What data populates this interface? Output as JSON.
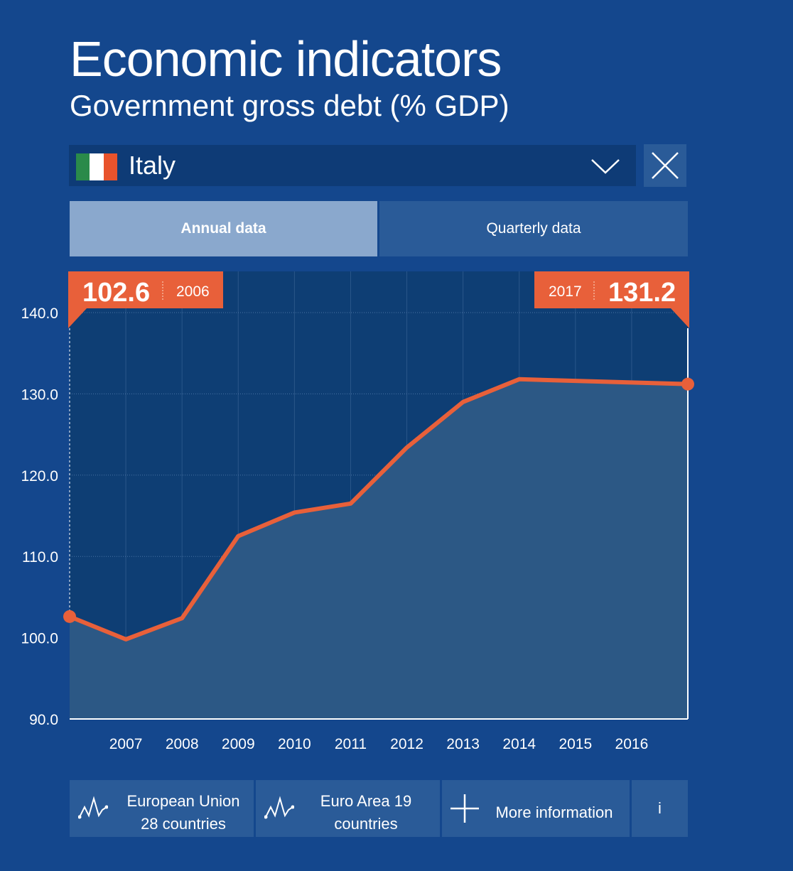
{
  "header": {
    "title": "Economic indicators",
    "subtitle": "Government gross debt (% GDP)"
  },
  "country_select": {
    "value": "Italy",
    "flag_colors": [
      "#2a8a4a",
      "#ffffff",
      "#e8532c"
    ],
    "chevron_icon": "chevron-down-icon",
    "close_icon": "close-icon"
  },
  "tabs": [
    {
      "label": "Annual data",
      "active": true
    },
    {
      "label": "Quarterly data",
      "active": false
    }
  ],
  "callouts": {
    "start": {
      "value": "102.6",
      "year": "2006"
    },
    "end": {
      "year": "2017",
      "value": "131.2"
    }
  },
  "colors": {
    "background": "#14478d",
    "plot_background": "#0e3e74",
    "area_fill": "#2c5885",
    "accent": "#e8603a"
  },
  "chart_data": {
    "type": "area",
    "x": [
      "2006",
      "2007",
      "2008",
      "2009",
      "2010",
      "2011",
      "2012",
      "2013",
      "2014",
      "2015",
      "2016",
      "2017"
    ],
    "values": [
      102.6,
      99.8,
      102.4,
      112.5,
      115.4,
      116.5,
      123.4,
      129.0,
      131.8,
      131.6,
      131.4,
      131.2
    ],
    "x_tick_labels": [
      "2007",
      "2008",
      "2009",
      "2010",
      "2011",
      "2012",
      "2013",
      "2014",
      "2015",
      "2016"
    ],
    "y_ticks": [
      "90.0",
      "100.0",
      "110.0",
      "120.0",
      "130.0",
      "140.0"
    ],
    "ylim": [
      90,
      140
    ],
    "grid": true,
    "title": "",
    "xlabel": "",
    "ylabel": ""
  },
  "footer": {
    "buttons": [
      {
        "line1": "European Union",
        "line2": "28 countries",
        "icon": "line-chart-icon"
      },
      {
        "line1": "Euro Area 19",
        "line2": "countries",
        "icon": "line-chart-icon"
      },
      {
        "label": "More information",
        "icon": "plus-icon"
      },
      {
        "label": "i"
      }
    ]
  }
}
